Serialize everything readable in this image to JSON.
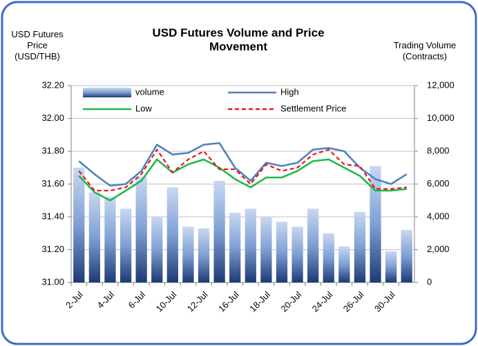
{
  "chart_data": {
    "type": "bar_line",
    "title": "USD Futures Volume and Price Movement",
    "y_label": "USD Futures Price (USD/THB)",
    "y2_label": "Trading Volume (Contracts)",
    "categories": [
      "2-Jul",
      null,
      "4-Jul",
      null,
      "6-Jul",
      null,
      "10-Jul",
      null,
      "12-Jul",
      null,
      "16-Jul",
      null,
      "18-Jul",
      null,
      "20-Jul",
      null,
      "24-Jul",
      null,
      "26-Jul",
      null,
      "30-Jul",
      null
    ],
    "series": [
      {
        "name": "volume",
        "type": "bar",
        "axis": "y2",
        "color": "#2a4f8f",
        "values": [
          7000,
          5500,
          5200,
          4500,
          6450,
          4000,
          5800,
          3400,
          3300,
          6200,
          4250,
          4500,
          4000,
          3700,
          3400,
          4500,
          3000,
          2200,
          4300,
          7100,
          1900,
          3200
        ]
      },
      {
        "name": "High",
        "type": "line",
        "color": "#4f81bd",
        "values": [
          31.74,
          31.66,
          31.59,
          31.6,
          31.68,
          31.84,
          31.78,
          31.79,
          31.84,
          31.85,
          31.7,
          31.62,
          31.73,
          31.71,
          31.73,
          31.81,
          31.82,
          31.8,
          31.7,
          31.63,
          31.6,
          31.66
        ]
      },
      {
        "name": "Low",
        "type": "line",
        "color": "#1fb84a",
        "values": [
          31.65,
          31.55,
          31.5,
          31.56,
          31.62,
          31.75,
          31.67,
          31.72,
          31.75,
          31.7,
          31.63,
          31.58,
          31.64,
          31.64,
          31.68,
          31.74,
          31.75,
          31.7,
          31.65,
          31.56,
          31.56,
          31.57
        ]
      },
      {
        "name": "Settlement Price",
        "type": "line",
        "dashed": true,
        "color": "#e8141c",
        "values": [
          31.68,
          31.56,
          31.56,
          31.58,
          31.66,
          31.81,
          31.67,
          31.75,
          31.8,
          31.69,
          31.69,
          31.6,
          31.72,
          31.68,
          31.7,
          31.78,
          31.81,
          31.72,
          31.71,
          31.57,
          31.57,
          31.58
        ]
      }
    ],
    "ylim": [
      31.0,
      32.2
    ],
    "yticks": [
      {
        "value": 31.0,
        "label": "31.00"
      },
      {
        "value": 31.2,
        "label": "31.20"
      },
      {
        "value": 31.4,
        "label": "31.40"
      },
      {
        "value": 31.6,
        "label": "31.60"
      },
      {
        "value": 31.8,
        "label": "31.80"
      },
      {
        "value": 32.0,
        "label": "32.00"
      },
      {
        "value": 32.2,
        "label": "32.20"
      }
    ],
    "y2lim": [
      0,
      12000
    ],
    "y2ticks": [
      0,
      {
        "value": 2000,
        "label": "2,000"
      },
      {
        "value": 4000,
        "label": "4,000"
      },
      {
        "value": 6000,
        "label": "6,000"
      },
      {
        "value": 8000,
        "label": "8,000"
      },
      {
        "value": 10000,
        "label": "10,000"
      },
      {
        "value": 12000,
        "label": "12,000"
      }
    ],
    "grid": true,
    "legend": "top"
  }
}
